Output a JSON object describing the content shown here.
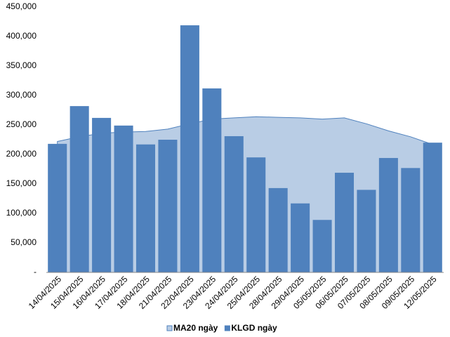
{
  "chart_data": {
    "type": "bar",
    "categories": [
      "14/04/2025",
      "15/04/2025",
      "16/04/2025",
      "17/04/2025",
      "18/04/2025",
      "21/04/2025",
      "22/04/2025",
      "23/04/2025",
      "24/04/2025",
      "25/04/2025",
      "28/04/2025",
      "29/04/2025",
      "05/05/2025",
      "06/05/2025",
      "07/05/2025",
      "08/05/2025",
      "09/05/2025",
      "12/05/2025"
    ],
    "series": [
      {
        "name": "MA20 ngày",
        "type": "area",
        "color": "#b9cde5",
        "line_color": "#4f81bd",
        "values": [
          222000,
          230000,
          236000,
          238000,
          239000,
          243000,
          252000,
          260000,
          262000,
          264000,
          263000,
          262000,
          260000,
          262000,
          252000,
          240000,
          230000,
          217000
        ]
      },
      {
        "name": "KLGD ngày",
        "type": "bar",
        "color": "#4f81bd",
        "values": [
          218000,
          282000,
          262000,
          249000,
          217000,
          225000,
          419000,
          312000,
          231000,
          195000,
          143000,
          117000,
          89000,
          169000,
          140000,
          194000,
          177000,
          220000
        ]
      }
    ],
    "ylim": [
      0,
      450000
    ],
    "yticks": [
      {
        "value": 0,
        "label": "-"
      },
      {
        "value": 50000,
        "label": "50,000"
      },
      {
        "value": 100000,
        "label": "100,000"
      },
      {
        "value": 150000,
        "label": "150,000"
      },
      {
        "value": 200000,
        "label": "200,000"
      },
      {
        "value": 250000,
        "label": "250,000"
      },
      {
        "value": 300000,
        "label": "300,000"
      },
      {
        "value": 350000,
        "label": "350,000"
      },
      {
        "value": 400000,
        "label": "400,000"
      },
      {
        "value": 450000,
        "label": "450,000"
      }
    ],
    "grid": false,
    "legend": "bottom"
  }
}
